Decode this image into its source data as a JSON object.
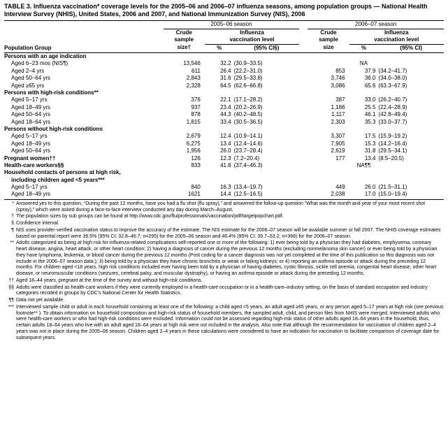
{
  "title": "TABLE 3. Influenza vaccination* coverage levels for the 2005–06 and 2006–07 influenza seasons, among population groups — National Health Interview Survey (NHIS), United States, 2006 and 2007, and National Immunization Survey (NIS), 2006",
  "season_a": "2005–06 season",
  "season_b": "2006–07 season",
  "crude_label_a": "Crude",
  "crude_label_b": "Crude",
  "sample_label_a": "sample",
  "sample_label_b": "sample",
  "inf_label_a": "Influenza",
  "inf_label_b": "Influenza",
  "vacc_label_a": "vaccination level",
  "vacc_label_b": "vaccination level",
  "popgroup_label": "Population Group",
  "size_label_a": "size†",
  "size_label_b": "size",
  "pct_a": "%",
  "pct_b": "%",
  "ci_a": "(95% CI§)",
  "ci_b": "(95% CI)",
  "groups": [
    {
      "head": "Persons with an age indication",
      "rows": [
        {
          "label": "Aged 6–23 mos (NIS¶)",
          "s1": "13,546",
          "p1": "32.2",
          "c1": "(30.9–33.5)",
          "s2": "",
          "p2": "NA",
          "c2": ""
        },
        {
          "label": "Aged 2–4 yrs",
          "s1": "611",
          "p1": "26.4",
          "c1": "(22.2–31.0)",
          "s2": "853",
          "p2": "37.9",
          "c2": "(34.2–41.7)"
        },
        {
          "label": "Aged 50–64 yrs",
          "s1": "2,843",
          "p1": "31.6",
          "c1": "(29.5–33.8)",
          "s2": "3,746",
          "p2": "36.0",
          "c2": "(34.0–38.0)"
        },
        {
          "label": "Aged ≥65 yrs",
          "s1": "2,328",
          "p1": "64.5",
          "c1": "(62.6–66.8)",
          "s2": "3,086",
          "p2": "65.6",
          "c2": "(63.3–67.9)"
        }
      ]
    },
    {
      "head": "Persons with high-risk conditions**",
      "rows": [
        {
          "label": "Aged 5–17 yrs",
          "s1": "376",
          "p1": "22.1",
          "c1": "(17.1–28.2)",
          "s2": "387",
          "p2": "33.0",
          "c2": "(26.2–40.7)"
        },
        {
          "label": "Aged 18–49 yrs",
          "s1": "937",
          "p1": "23.4",
          "c1": "(20.2–26.9)",
          "s2": "1,186",
          "p2": "25.5",
          "c2": "(22.4–28.9)"
        },
        {
          "label": "Aged 50–64 yrs",
          "s1": "878",
          "p1": "44.3",
          "c1": "(40.2–48.5)",
          "s2": "1,117",
          "p2": "46.1",
          "c2": "(42.8–49.4)"
        },
        {
          "label": "Aged 18–64 yrs",
          "s1": "1,815",
          "p1": "33.4",
          "c1": "(30.5–36.5)",
          "s2": "2,303",
          "p2": "35.3",
          "c2": "(33.0–37.7)"
        }
      ]
    },
    {
      "head": "Persons without high-risk conditions",
      "rows": [
        {
          "label": "Aged 5–17 yrs",
          "s1": "2,679",
          "p1": "12.4",
          "c1": "(10.9–14.1)",
          "s2": "3,307",
          "p2": "17.5",
          "c2": "(15.9–19.2)"
        },
        {
          "label": "Aged 18–49 yrs",
          "s1": "6,275",
          "p1": "13.4",
          "c1": "(12.4–14.6)",
          "s2": "7,905",
          "p2": "15.3",
          "c2": "(14.2–16.4)"
        },
        {
          "label": "Aged 50–64 yrs",
          "s1": "1,956",
          "p1": "26.0",
          "c1": "(23.7–28.4)",
          "s2": "2,619",
          "p2": "31.8",
          "c2": "(29.5–34.1)"
        }
      ]
    }
  ],
  "single_rows": [
    {
      "label": "Pregnant women††",
      "s1": "126",
      "p1": "12.3",
      "c1": "(7.2–20.4)",
      "s2": "177",
      "p2": "13.4",
      "c2": "(8.5–20.5)"
    },
    {
      "label": "Health-care workers§§",
      "s1": "833",
      "p1": "41.8",
      "c1": "(37.4–46.3)",
      "s2": "",
      "p2": "NA¶¶",
      "c2": ""
    }
  ],
  "household_head_l1": "Household contacts of persons at high risk,",
  "household_head_l2": "including children aged <5 years***",
  "household_rows": [
    {
      "label": "Aged 5–17 yrs",
      "s1": "840",
      "p1": "16.3",
      "c1": "(13.4–19.7)",
      "s2": "449",
      "p2": "26.0",
      "c2": "(21.5–31.1)"
    },
    {
      "label": "Aged 18–49 yrs",
      "s1": "1621",
      "p1": "14.4",
      "c1": "(12.5–16.5)",
      "s2": "2,038",
      "p2": "17.0",
      "c2": "(15.0–19.4)"
    }
  ],
  "footnotes": [
    {
      "mark": "*",
      "text": "Answered yes to this question, “During the past 12 months, have you had a flu shot (flu spray),” and answered the follow-up question “What was the month and year of your most recent shot (spray),” which were asked during a face-to-face interview conducted any day during March–August."
    },
    {
      "mark": "†",
      "text": "The population sizes by sub groups can be found at http://www.cdc.gov/flu/professionals/vaccination/pdf/targetpopchart.pdf."
    },
    {
      "mark": "§",
      "text": "Confidence interval."
    },
    {
      "mark": "¶",
      "text": "NIS uses provider-verified vaccination status to improve the accuracy of the estimate. The NIS estimate for the 2006–07 season will be available summer or fall 2007. The NHIS coverage estimates based on parental report were 39.5% (95% CI: 32.8–46.7; n=295) for the 2005–06 season and 46.4% (95% CI: 39.7–53.2; n=368) for the 2006–07 season."
    },
    {
      "mark": "**",
      "text": "Adults categorized as being at high risk for influenza-related complications self-reported one or more of the following: 1) ever being told by a physician they had diabetes, emphysema, coronary heart disease, angina, heart attack, or other heart condition; 2) having a diagnosis of cancer during the previous 12 months (excluding nonmelanoma skin cancer) or ever being told by a physician they have lymphoma, leukemia, or blood cancer during the previous 12 months (Post coding for a cancer diagnosis was not yet completed at the time of this publication so this diagnosis was not include in the 2006–07 season data.); 3) being told by a physician they have chronic bronchitis or weak or failing kidneys; or 4) reporting an asthma episode or attack during the preceding 12 months. For children aged <18 years, high risk conditions included ever having been told by a physician of having diabetes, cystic fibrosis, sickle cell anemia, congenital heart disease, other heart disease, or neuromuscular conditions (seizures, cerebral palsy, and muscular dystrophy), or having an asthma episode or attack during the preceding 12 months."
    },
    {
      "mark": "††",
      "text": "Aged 18–44 years, pregnant at the time of the survey and without high-risk conditions."
    },
    {
      "mark": "§§",
      "text": "Adults were classified as health-care workers if they were currently employed in a health-care occupation or in a health-care–industry setting, on the basis of standard occupation and industry categories recoded in groups by CDC's National Center for Health Statistics."
    },
    {
      "mark": "¶¶",
      "text": "Data not yet available."
    },
    {
      "mark": "***",
      "text": "Interviewed sample child or adult in each household containing at least one of the following: a child aged <5 years, an adult aged ≥65 years, or any person aged 5–17 years at high risk (see previous footnote** ). To obtain information on household composition and high-risk status of household members, the sampled adult, child, and person files from NHIS were merged. Interviewed adults who were health-care workers or who had high-risk conditions were excluded. Information could not be assessed regarding high-risk status of other adults aged 18–64 years in the household, thus, certain adults 18–64 years who live with an adult aged 18–64 years at high risk were not included in the analysis. Also note that although the recommendation for vaccination of children aged 2–4 years was not in place during the 2005–06 season. Children aged 2–4 years in these calculations were considered to have an indication for vaccination to facilitate comparison of coverage date for subsequent years."
    }
  ]
}
